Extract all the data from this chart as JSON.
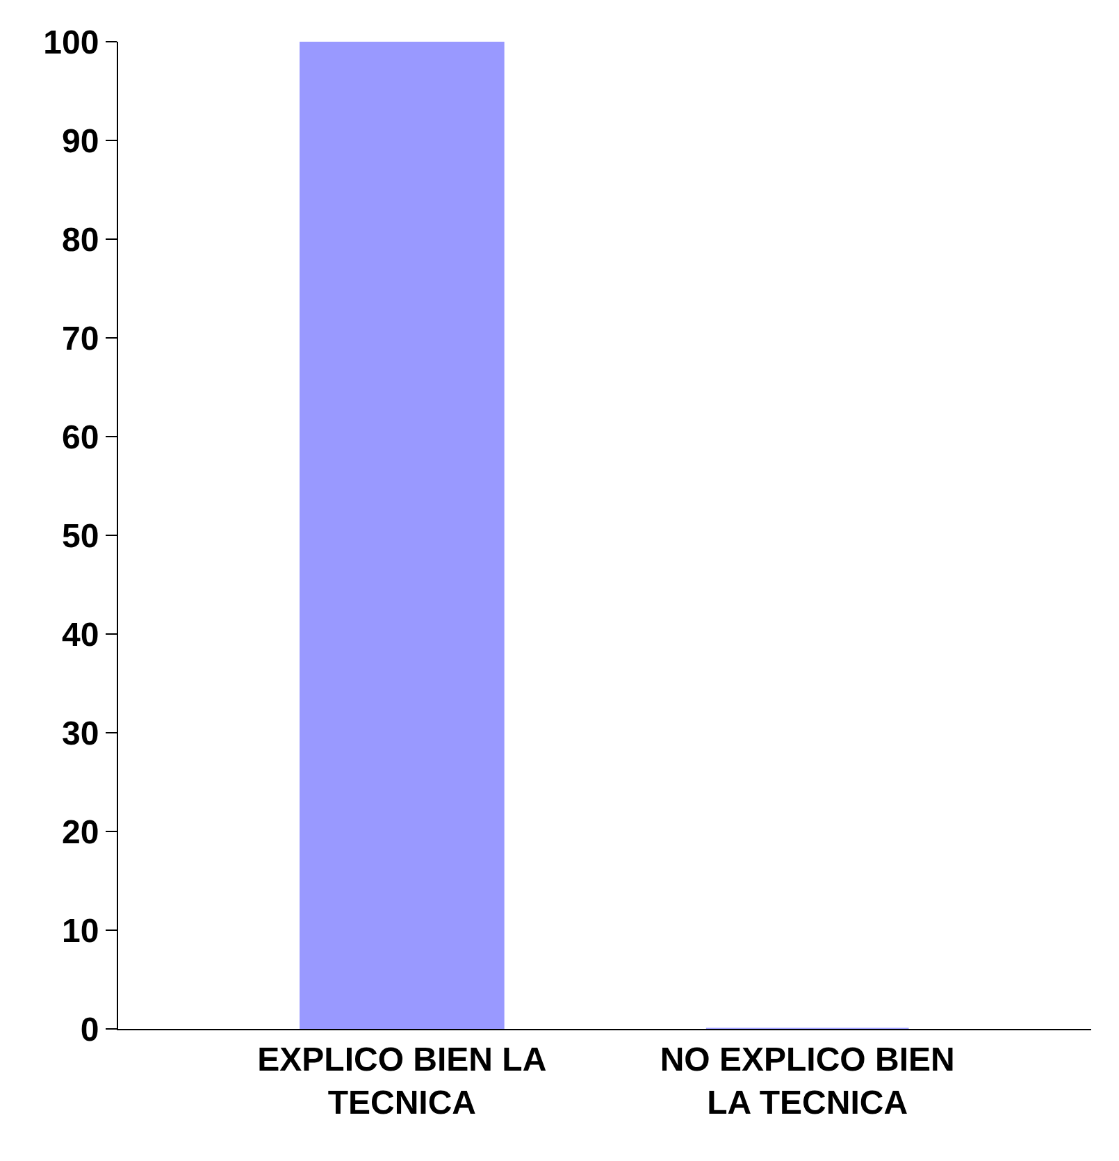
{
  "chart_data": {
    "type": "bar",
    "categories": [
      "EXPLICO BIEN LA TECNICA",
      "NO EXPLICO BIEN LA TECNICA"
    ],
    "values": [
      100,
      0
    ],
    "color": "#9999ff",
    "ylim": [
      0,
      100
    ],
    "yticks": [
      0,
      10,
      20,
      30,
      40,
      50,
      60,
      70,
      80,
      90,
      100
    ],
    "grid": false
  }
}
